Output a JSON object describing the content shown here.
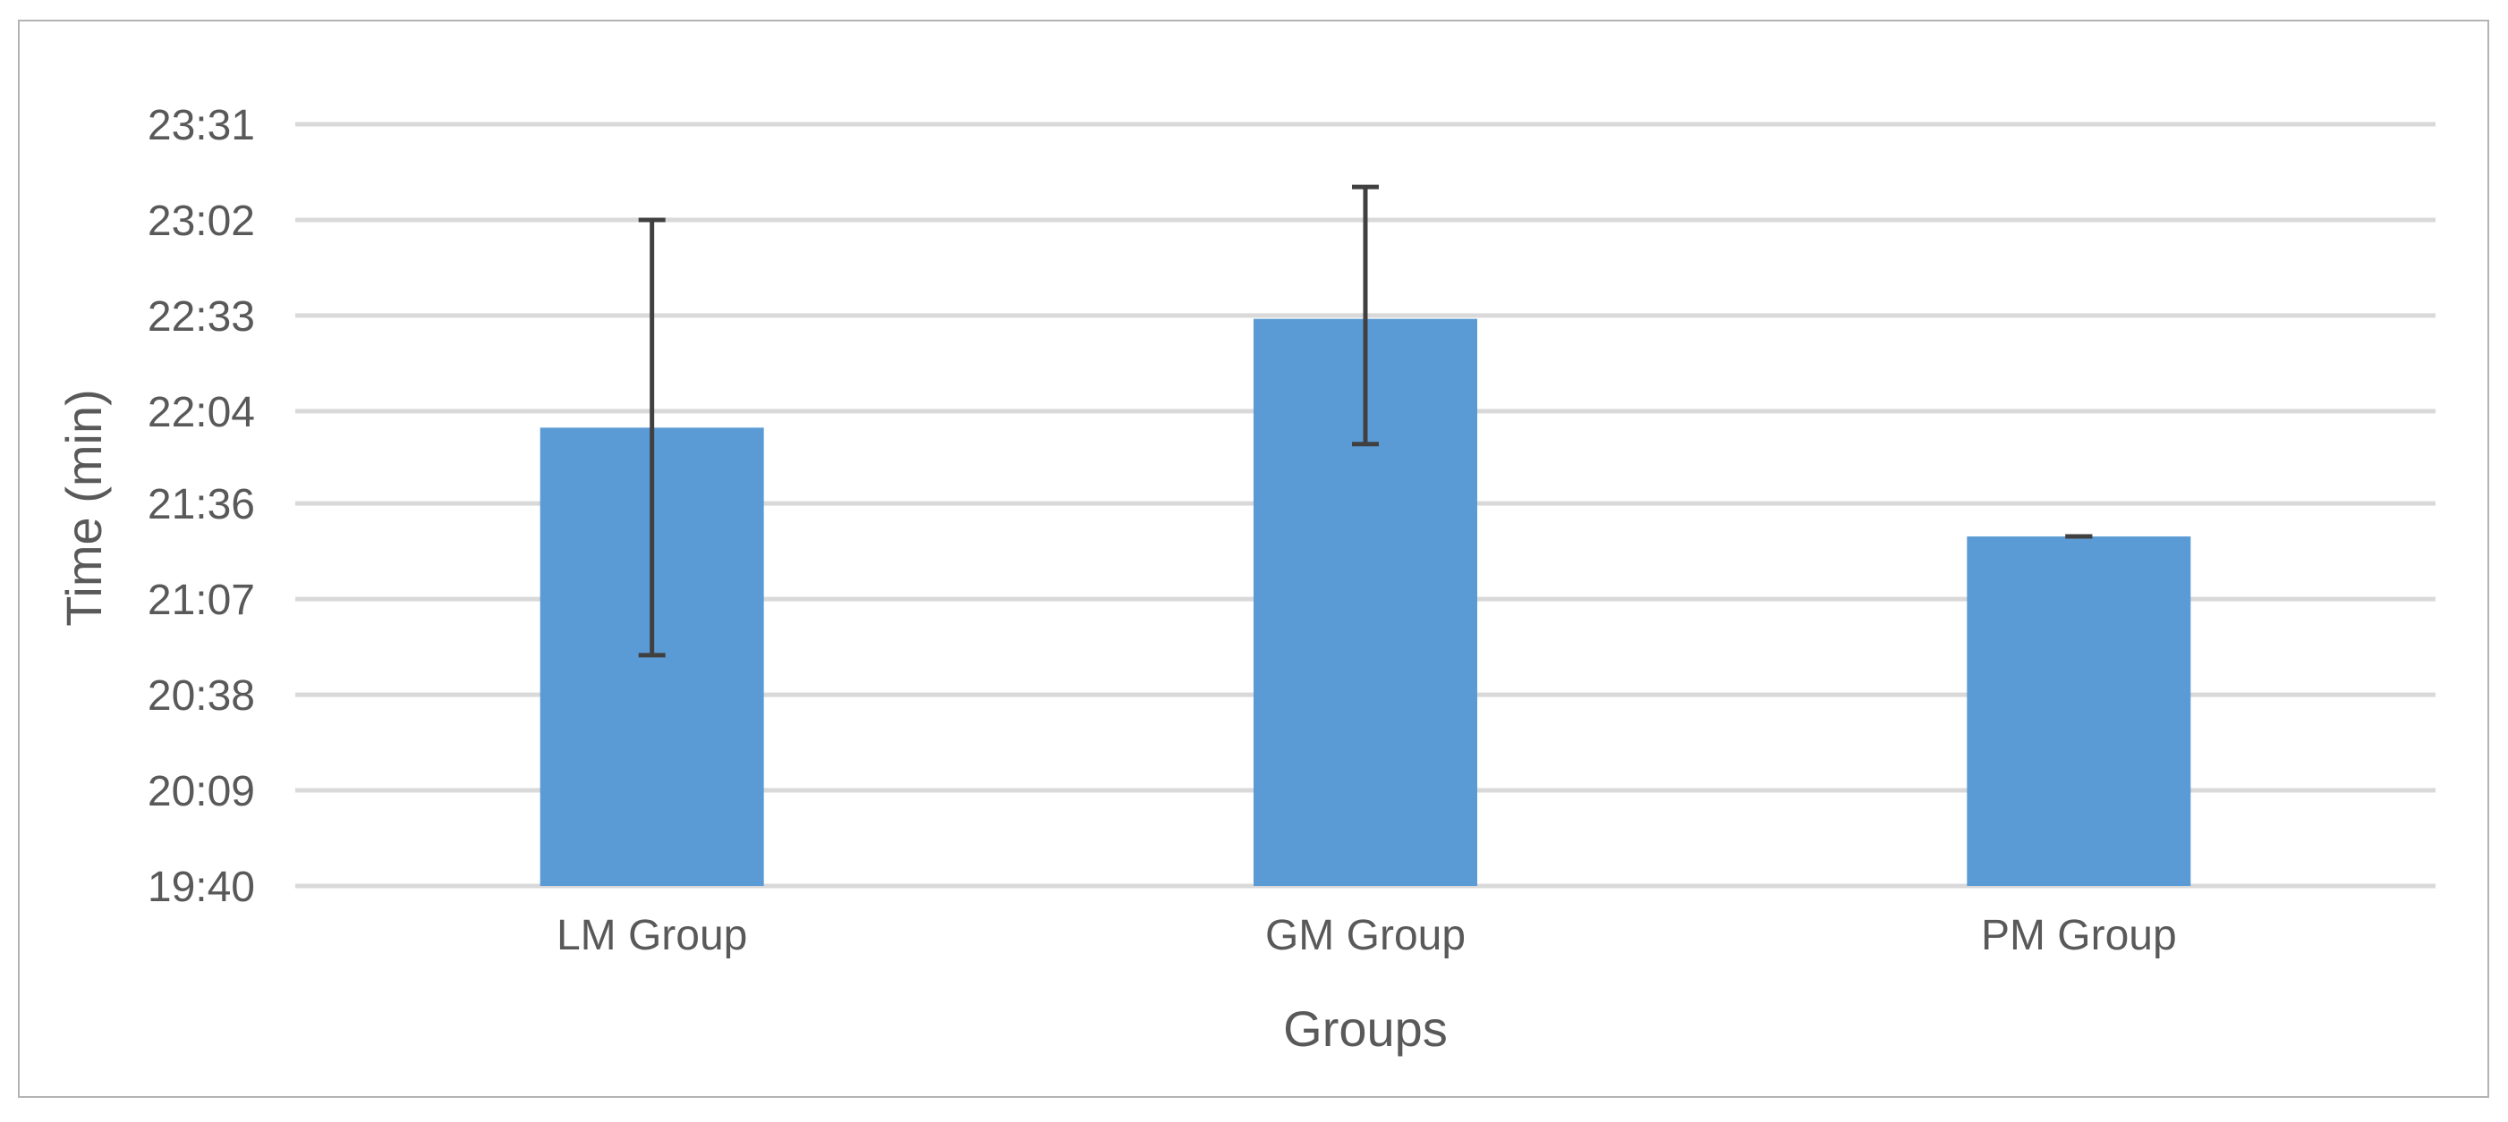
{
  "chart_data": {
    "type": "bar",
    "title": "",
    "xlabel": "Groups",
    "ylabel": "Time (min)",
    "categories": [
      "LM Group",
      "GM Group",
      "PM Group"
    ],
    "series": [
      {
        "values": [
          "21:59",
          "22:32",
          "21:26"
        ],
        "error_plus": [
          "01:03",
          "00:40",
          "00:00"
        ],
        "error_minus": [
          "01:09",
          "00:38",
          "00:00"
        ]
      }
    ],
    "y_ticks": [
      "19:40",
      "20:09",
      "20:38",
      "21:07",
      "21:36",
      "22:04",
      "22:33",
      "23:02",
      "23:31"
    ],
    "ylim": [
      "19:40",
      "23:31"
    ],
    "grid": true,
    "legend": "none",
    "colors": {
      "bar": "#5b9bd5",
      "error_bar": "#404040",
      "grid": "#d9d9d9",
      "text": "#595959",
      "border": "#b3b3b3"
    }
  }
}
